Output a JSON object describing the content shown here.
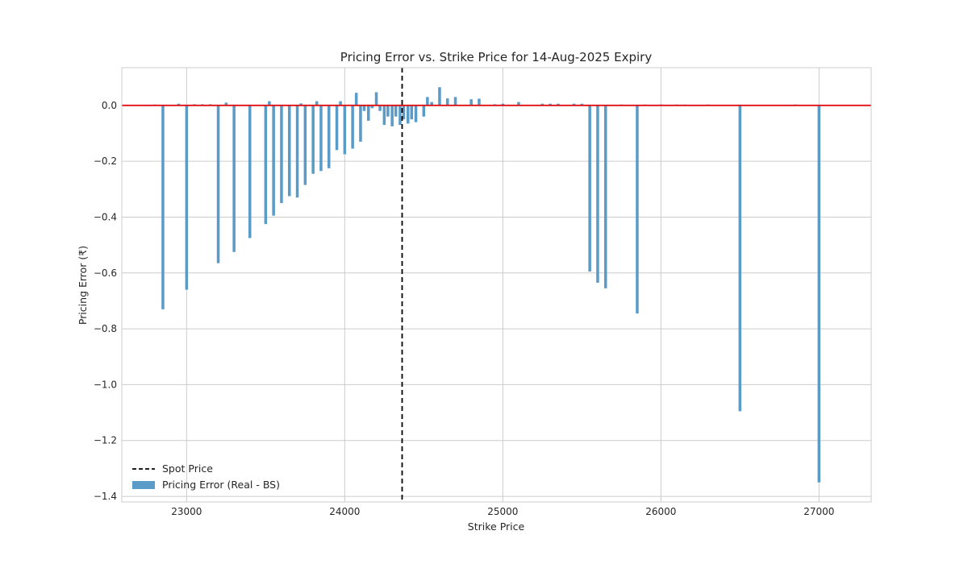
{
  "chart_data": {
    "type": "bar",
    "title": "Pricing Error vs. Strike Price for 14-Aug-2025 Expiry",
    "xlabel": "Strike Price",
    "ylabel": "Pricing Error (₹)",
    "xlim": [
      22590,
      27330
    ],
    "ylim": [
      -1.42,
      0.135
    ],
    "xticks": [
      23000,
      24000,
      25000,
      26000,
      27000
    ],
    "yticks": [
      0.0,
      -0.2,
      -0.4,
      -0.6,
      -0.8,
      -1.0,
      -1.2,
      -1.4
    ],
    "ytick_labels": [
      "0.0",
      "−0.2",
      "−0.4",
      "−0.6",
      "−0.8",
      "−1.0",
      "−1.2",
      "−1.4"
    ],
    "grid": true,
    "legend_position": "lower-left",
    "spot_price": 24363,
    "bar_width": 18,
    "series": [
      {
        "name": "Pricing Error (Real - BS)",
        "color": "#5a9bc8",
        "x": [
          22800,
          22850,
          22950,
          23000,
          23050,
          23100,
          23150,
          23200,
          23250,
          23300,
          23400,
          23500,
          23550,
          23600,
          23650,
          23700,
          23750,
          23800,
          23850,
          23900,
          23950,
          24000,
          24050,
          24100,
          24150,
          24200,
          24250,
          24300,
          24350,
          24400,
          24450,
          24500,
          24550,
          24600,
          24650,
          24700,
          24800,
          24850,
          24950,
          25000,
          25100,
          25250,
          25300,
          25350,
          25450,
          25500,
          25550,
          25600,
          25650,
          25750,
          25850,
          25900,
          26000,
          26100,
          26150,
          26300,
          26500,
          26850,
          27000
        ],
        "values": [
          0.003,
          -0.73,
          0.006,
          -0.66,
          0.004,
          0.004,
          0.004,
          -0.565,
          0.01,
          -0.525,
          -0.475,
          -0.425,
          -0.395,
          -0.35,
          -0.325,
          -0.33,
          -0.285,
          -0.245,
          -0.235,
          -0.225,
          -0.16,
          -0.175,
          -0.155,
          -0.13,
          -0.055,
          0.047,
          -0.07,
          -0.075,
          -0.07,
          -0.065,
          -0.06,
          -0.04,
          0.012,
          0.065,
          0.025,
          0.03,
          0.022,
          0.024,
          0.004,
          0.006,
          0.012,
          0.006,
          0.006,
          0.006,
          0.006,
          0.006,
          -0.595,
          -0.635,
          -0.655,
          0.003,
          -0.745,
          0.003,
          0.003,
          0.003,
          0.003,
          0.003,
          -1.095,
          0.003,
          -1.35
        ]
      }
    ],
    "overlay_series": {
      "x": [
        23500,
        23700,
        23800,
        23950,
        24050,
        24100,
        24150,
        24200,
        24250,
        24300,
        24350,
        24400,
        24500
      ],
      "values": [
        0.015,
        0.007,
        0.015,
        0.015,
        0.045,
        -0.02,
        -0.01,
        -0.02,
        -0.04,
        -0.04,
        -0.05,
        -0.05,
        0.03
      ]
    },
    "zero_line_color": "#e01010",
    "spot_line_color": "#000000",
    "legend": [
      {
        "label": "Spot Price",
        "style": "dashed-line",
        "color": "#000000"
      },
      {
        "label": "Pricing Error (Real - BS)",
        "style": "patch",
        "color": "#5a9bc8"
      }
    ]
  }
}
